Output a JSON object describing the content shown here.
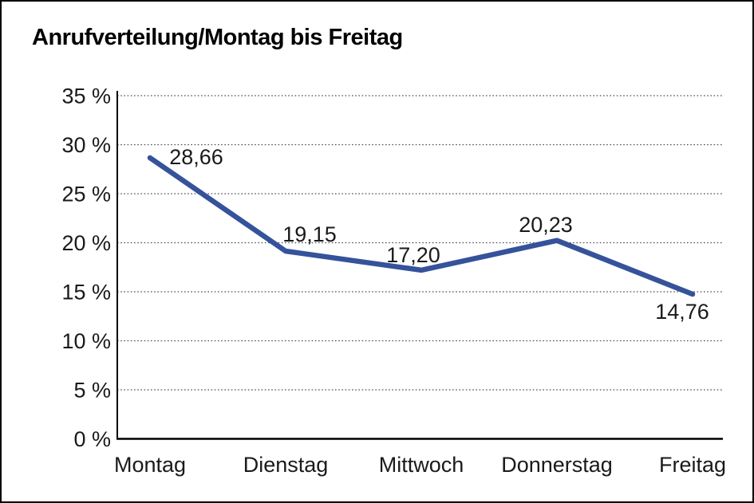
{
  "chart_data": {
    "type": "line",
    "title": "Anrufverteilung/Montag bis Freitag",
    "categories": [
      "Montag",
      "Dienstag",
      "Mittwoch",
      "Donnerstag",
      "Freitag"
    ],
    "series": [
      {
        "name": "Anrufverteilung",
        "values": [
          28.66,
          19.15,
          17.2,
          20.23,
          14.76
        ],
        "value_labels": [
          "28,66",
          "19,15",
          "17,20",
          "20,23",
          "14,76"
        ]
      }
    ],
    "xlabel": "",
    "ylabel": "",
    "ylim": [
      0,
      35
    ],
    "ytick_step": 5,
    "ytick_labels": [
      "0 %",
      "5 %",
      "10 %",
      "15 %",
      "20 %",
      "25 %",
      "30 %",
      "35 %"
    ],
    "grid": "horizontal-dotted",
    "legend": "none",
    "colors": {
      "line": "#35529b",
      "grid": "#4d4d4d",
      "axis": "#000000",
      "text": "#1a1a1a",
      "title_text": "#000000",
      "background": "#ffffff",
      "frame_border": "#000000"
    }
  }
}
